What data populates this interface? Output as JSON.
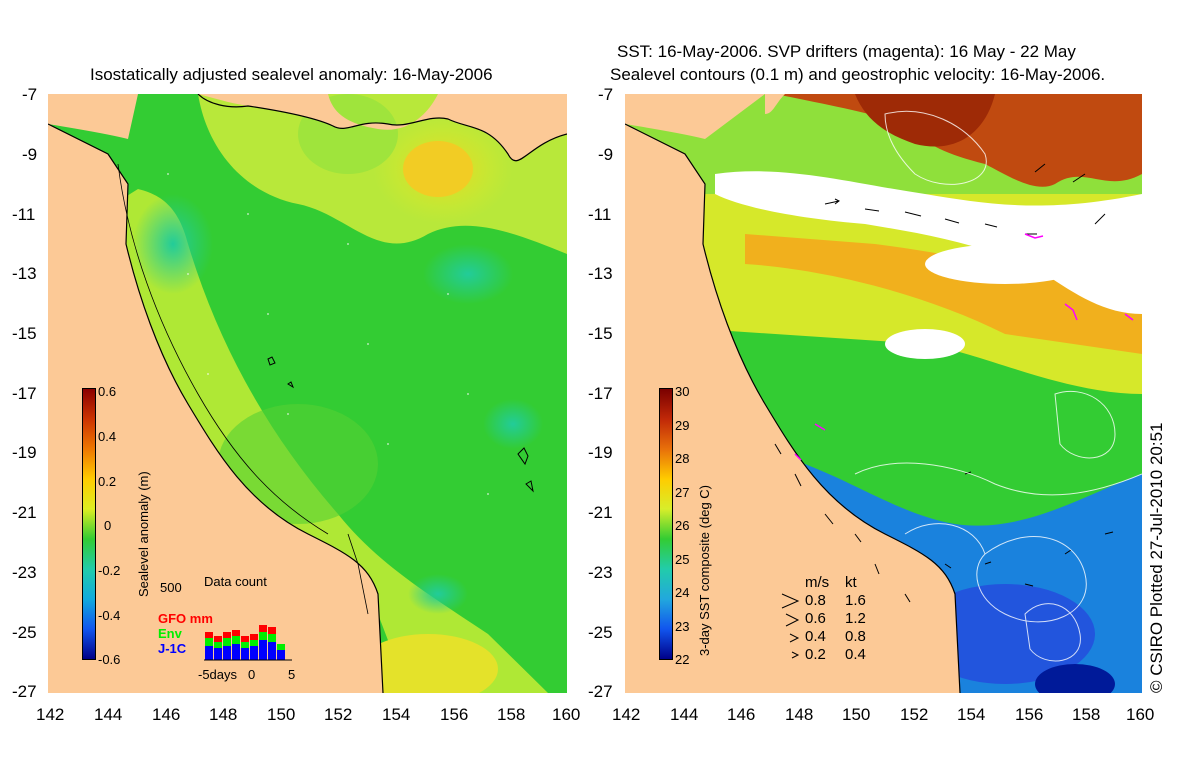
{
  "left": {
    "title": "Isostatically adjusted sealevel anomaly: 16-May-2006",
    "colorbar_label": "Sealevel anomaly (m)",
    "colorbar_ticks": [
      "0.6",
      "0.4",
      "0.2",
      "0",
      "-0.2",
      "-0.4",
      "-0.6"
    ],
    "inset": {
      "title": "Data count",
      "ymax": "500",
      "xlabels": [
        "-5days",
        "0",
        "5"
      ],
      "legend": [
        {
          "label": "GFO mm",
          "color": "#ff0000"
        },
        {
          "label": "Env",
          "color": "#00ee00"
        },
        {
          "label": "J-1C",
          "color": "#0000ff"
        }
      ]
    }
  },
  "right": {
    "title_line1": "SST: 16-May-2006. SVP drifters (magenta): 16 May - 22 May",
    "title_line2": "Sealevel contours (0.1 m) and geostrophic velocity: 16-May-2006.",
    "colorbar_label": "3-day SST composite (deg C)",
    "colorbar_ticks": [
      "30",
      "29",
      "28",
      "27",
      "26",
      "25",
      "24",
      "23",
      "22"
    ],
    "speed_legend": {
      "header_ms": "m/s",
      "header_kt": "kt",
      "rows": [
        {
          "ms": "0.8",
          "kt": "1.6"
        },
        {
          "ms": "0.6",
          "kt": "1.2"
        },
        {
          "ms": "0.4",
          "kt": "0.8"
        },
        {
          "ms": "0.2",
          "kt": "0.4"
        }
      ]
    }
  },
  "axes": {
    "lat_ticks": [
      "-7",
      "-9",
      "-11",
      "-13",
      "-15",
      "-17",
      "-19",
      "-21",
      "-23",
      "-25",
      "-27"
    ],
    "lon_ticks": [
      "142",
      "144",
      "146",
      "148",
      "150",
      "152",
      "154",
      "156",
      "158",
      "160"
    ]
  },
  "credit": "© CSIRO Plotted 27-Jul-2010 20:51",
  "colors": {
    "land": "#fcc996",
    "white": "#ffffff",
    "magenta": "#ff00ff"
  }
}
